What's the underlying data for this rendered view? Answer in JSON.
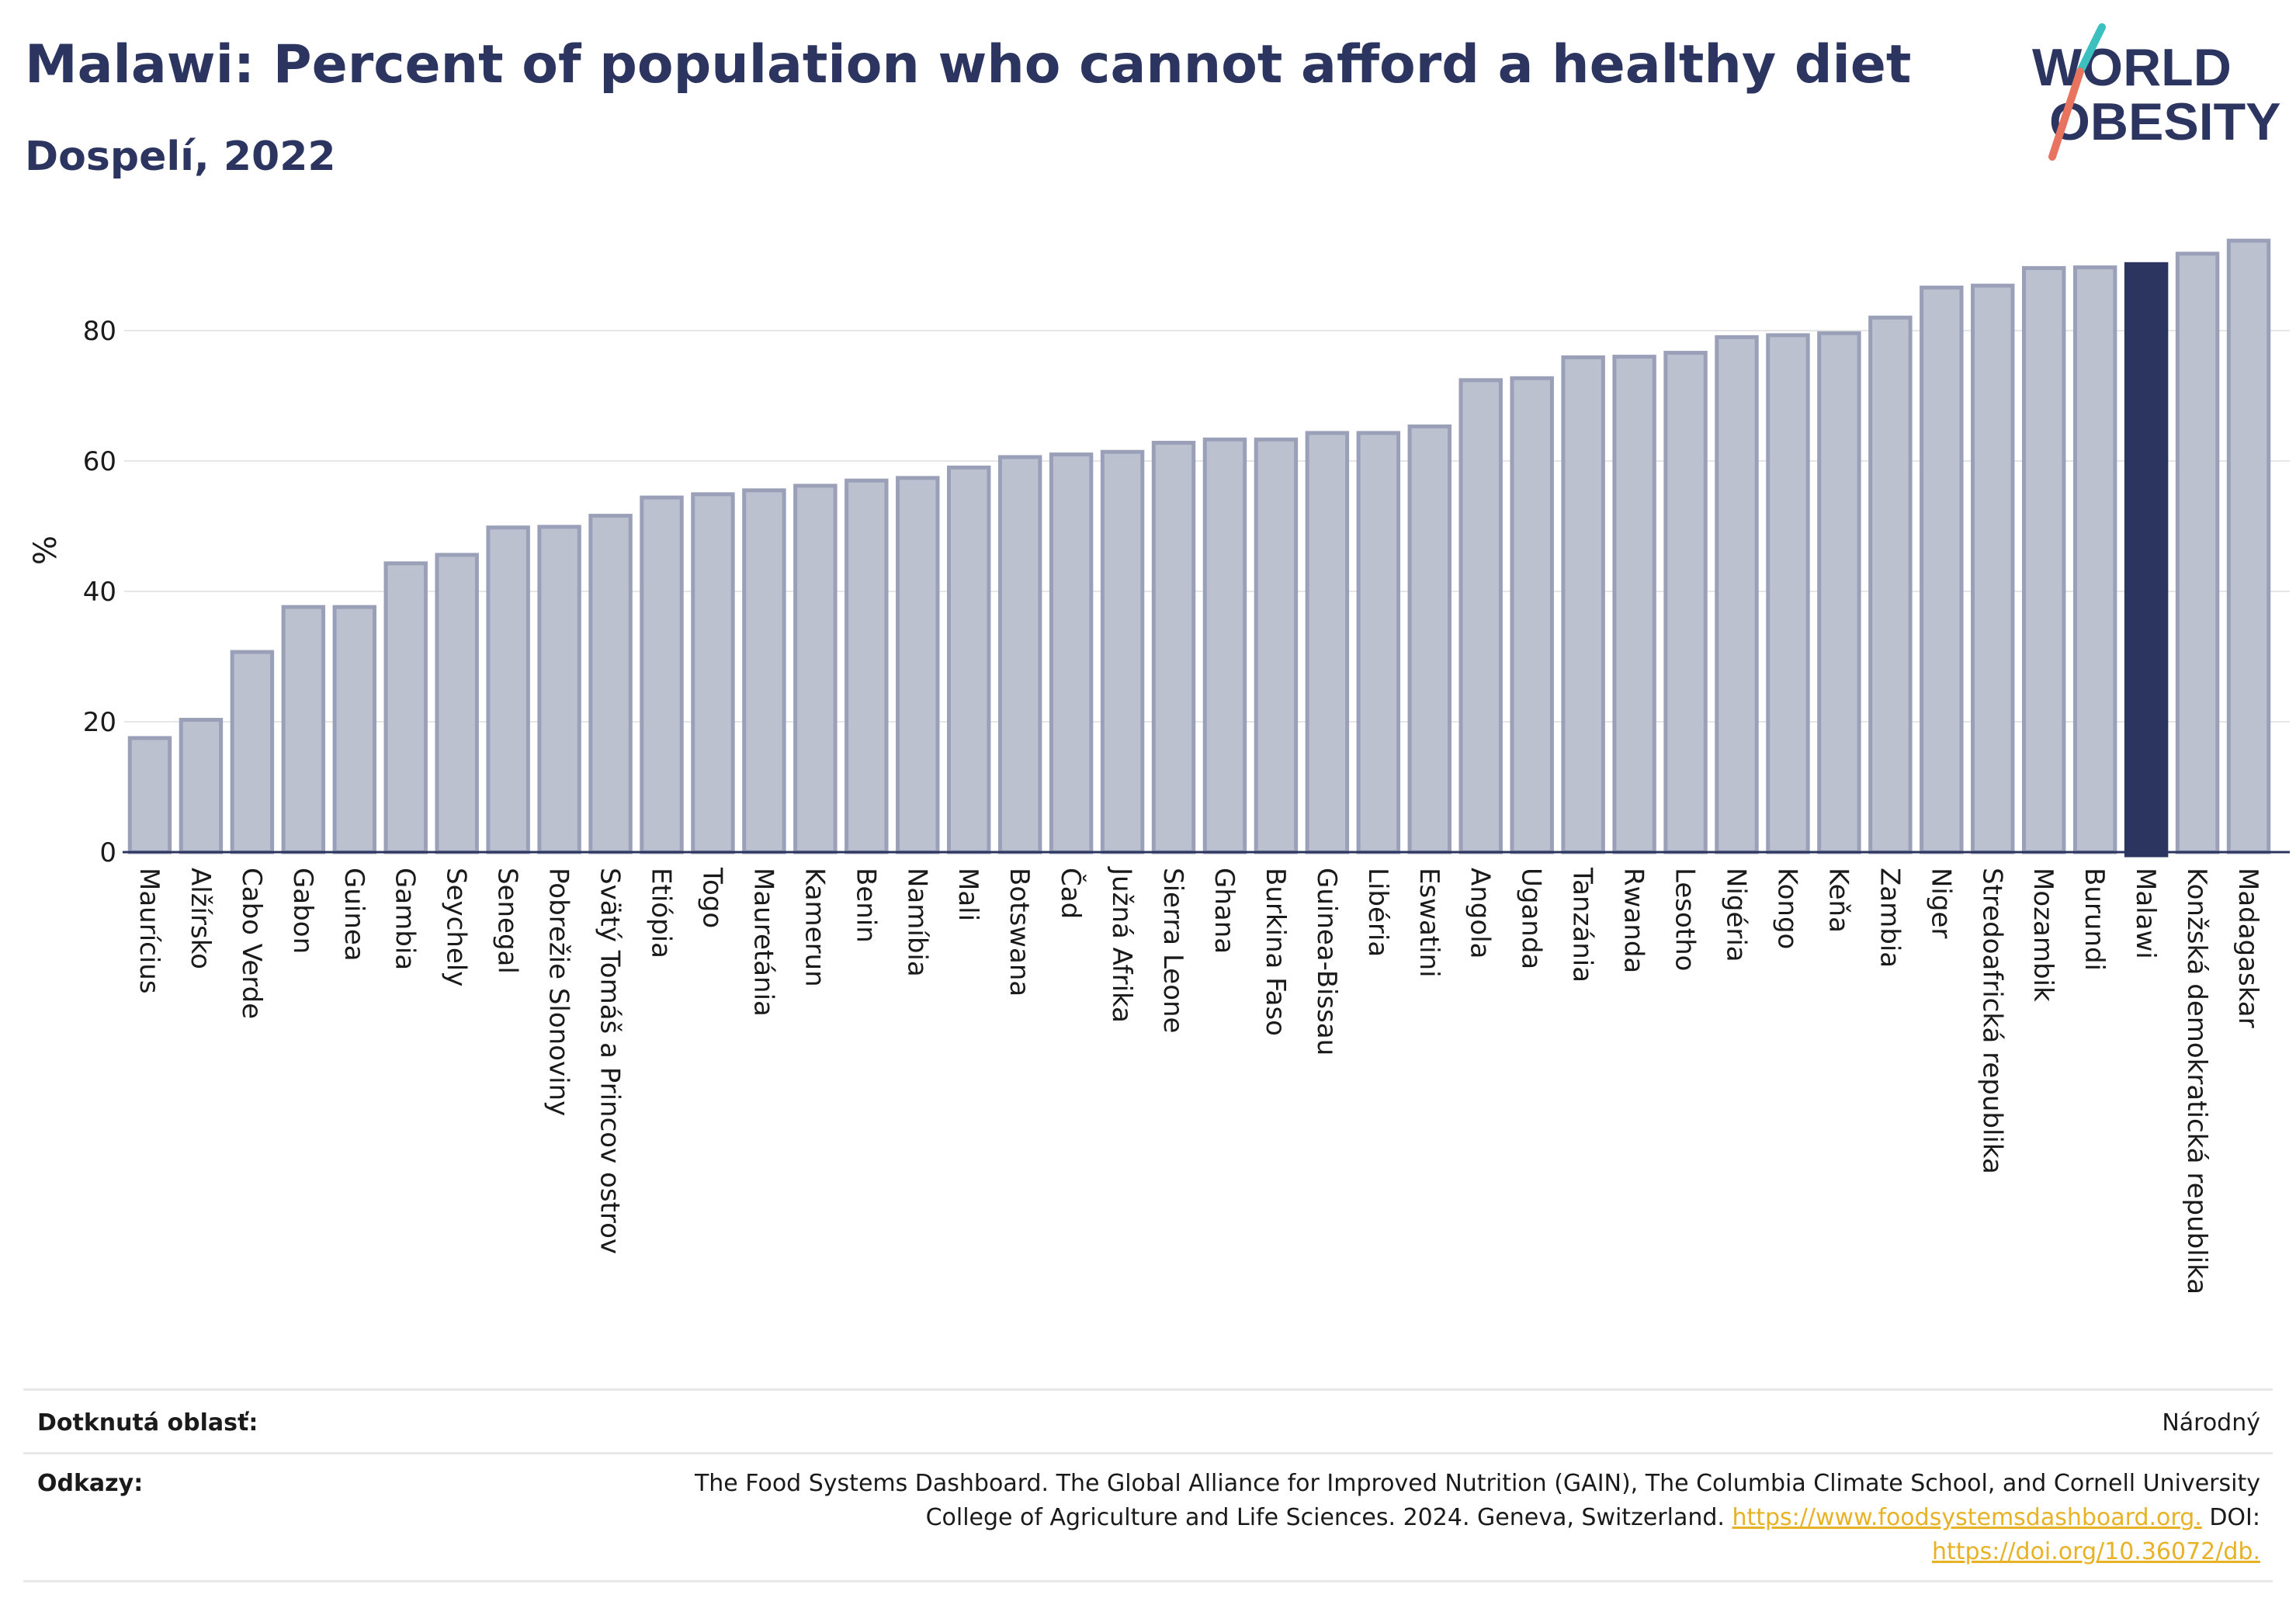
{
  "header": {
    "title": "Malawi: Percent of population who cannot afford a healthy diet",
    "subtitle": "Dospelí, 2022"
  },
  "logo": {
    "line1": "WORLD",
    "line2": "OBESITY"
  },
  "colors": {
    "bar": "#bcc1d0",
    "bar_border": "#9aa0b8",
    "highlight": "#2c3560",
    "text": "#2c3560",
    "grid": "#e6e6e6",
    "link": "#e8b226",
    "logo_teal": "#3cbfbf",
    "logo_coral": "#e8735f"
  },
  "chart_data": {
    "type": "bar",
    "ylabel": "%",
    "ylim": [
      0,
      95
    ],
    "yticks": [
      0,
      20,
      40,
      60,
      80
    ],
    "grid": true,
    "highlight": "Malawi",
    "categories": [
      "Maurícius",
      "Alžírsko",
      "Cabo Verde",
      "Gabon",
      "Guinea",
      "Gambia",
      "Seychely",
      "Senegal",
      "Pobrežie Slonoviny",
      "Svätý Tomáš a Princov ostrov",
      "Etiópia",
      "Togo",
      "Mauretánia",
      "Kamerun",
      "Benin",
      "Namíbia",
      "Mali",
      "Botswana",
      "Čad",
      "Južná Afrika",
      "Sierra Leone",
      "Ghana",
      "Burkina Faso",
      "Guinea-Bissau",
      "Libéria",
      "Eswatini",
      "Angola",
      "Uganda",
      "Tanzánia",
      "Rwanda",
      "Lesotho",
      "Nigéria",
      "Kongo",
      "Keňa",
      "Zambia",
      "Niger",
      "Stredoafrická republika",
      "Mozambik",
      "Burundi",
      "Malawi",
      "Konžská demokratická republika",
      "Madagaskar"
    ],
    "values": [
      17.5,
      20.3,
      30.7,
      37.6,
      37.6,
      44.3,
      45.6,
      49.8,
      49.9,
      51.6,
      54.4,
      54.9,
      55.5,
      56.2,
      57.0,
      57.4,
      59.0,
      60.6,
      61.0,
      61.4,
      62.8,
      63.3,
      63.3,
      64.3,
      64.3,
      65.3,
      72.4,
      72.7,
      75.9,
      76.0,
      76.6,
      79.0,
      79.3,
      79.6,
      82.0,
      86.6,
      86.9,
      89.6,
      89.7,
      90.2,
      91.8,
      93.8
    ]
  },
  "footer": {
    "area_label": "Dotknutá oblasť:",
    "area_value": "Národný",
    "refs_label": "Odkazy:",
    "refs_line1": "The Food Systems Dashboard. The Global Alliance for Improved Nutrition (GAIN), The Columbia Climate School, and Cornell University",
    "refs_line2_text": "College of Agriculture and Life Sciences. 2024. Geneva, Switzerland. ",
    "refs_link1": "https://www.foodsystemsdashboard.org.",
    "refs_doi_label": " DOI:",
    "refs_link2": "https://doi.org/10.36072/db."
  }
}
